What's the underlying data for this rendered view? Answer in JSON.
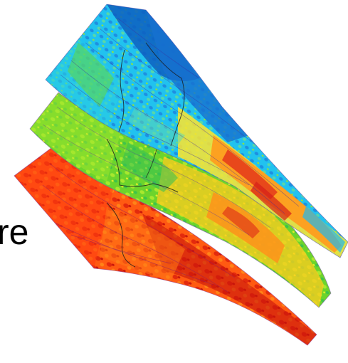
{
  "figure": {
    "cropped_text": "re",
    "layers": [
      {
        "name": "top-layer",
        "palette": [
          "#0b63c4",
          "#1e8fe0",
          "#1fc8f2",
          "#38d6c5",
          "#6bdc3a",
          "#a6e82d",
          "#fff22e",
          "#ff9d1d",
          "#e5361a"
        ]
      },
      {
        "name": "middle-layer",
        "palette": [
          "#1fc8f2",
          "#38c95c",
          "#5fd62b",
          "#a6e82d",
          "#e6ef2a",
          "#ffd21e",
          "#ff9d1d",
          "#e84a1a"
        ]
      },
      {
        "name": "bottom-layer",
        "palette": [
          "#ff8a16",
          "#ff6a12",
          "#ff4b10",
          "#f0300e",
          "#d8200c",
          "#c0130a"
        ]
      }
    ]
  }
}
